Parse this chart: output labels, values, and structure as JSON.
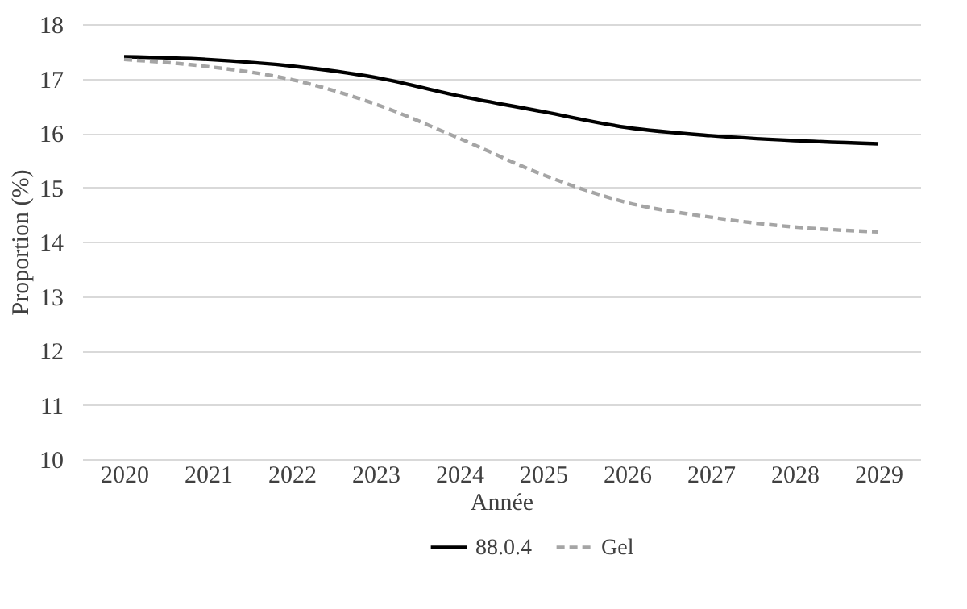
{
  "chart_data": {
    "type": "line",
    "xlabel": "Année",
    "ylabel": "Proportion (%)",
    "categories": [
      "2020",
      "2021",
      "2022",
      "2023",
      "2024",
      "2025",
      "2026",
      "2027",
      "2028",
      "2029"
    ],
    "series": [
      {
        "name": "88.0.4",
        "color": "#000000",
        "line_style": "solid",
        "values": [
          17.4,
          17.35,
          17.23,
          17.02,
          16.68,
          16.39,
          16.1,
          15.95,
          15.86,
          15.8
        ]
      },
      {
        "name": "Gel",
        "color": "#a5a5a5",
        "line_style": "dashed",
        "values": [
          17.35,
          17.22,
          16.98,
          16.53,
          15.9,
          15.23,
          14.72,
          14.45,
          14.27,
          14.18
        ]
      }
    ],
    "ylim": [
      10,
      18
    ],
    "yticks": [
      10,
      11,
      12,
      13,
      14,
      15,
      16,
      17,
      18
    ],
    "grid": "y",
    "legend": "bottom",
    "marker": "none"
  }
}
